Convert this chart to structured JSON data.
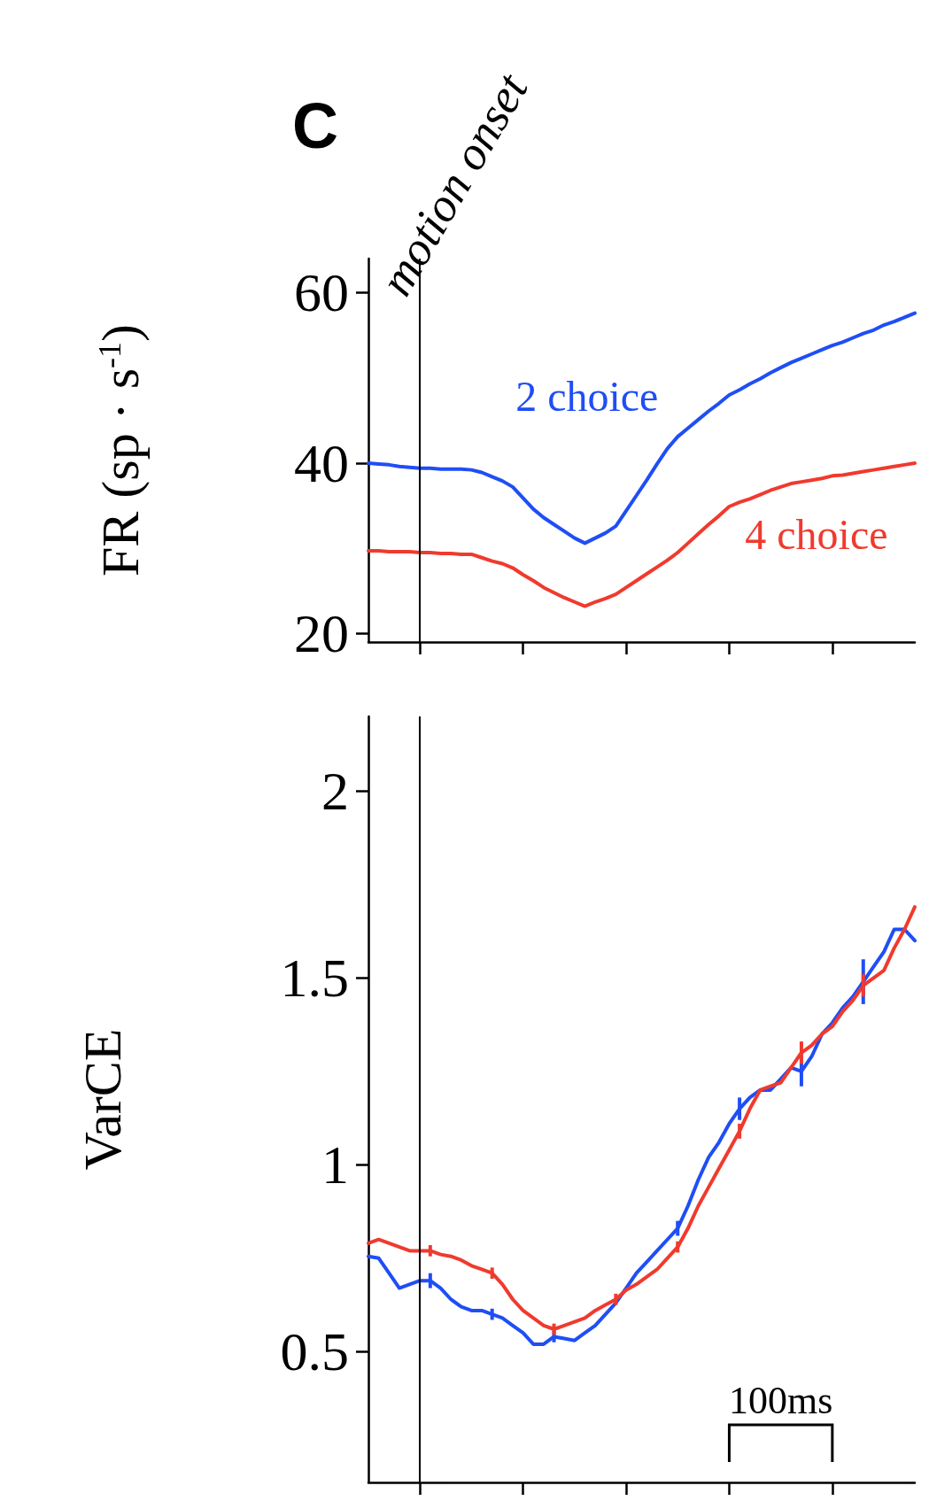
{
  "chart_data": [
    {
      "type": "line",
      "ylabel": "FR (sp · s$^{-1}$)",
      "annotations": [
        "C",
        "motion onset"
      ],
      "tick_labels": "y",
      "categories": [
        null,
        null,
        null,
        null,
        null,
        null,
        null,
        null,
        null,
        null,
        null,
        null,
        null,
        null,
        null,
        null,
        null,
        null,
        null,
        null,
        null,
        null,
        null,
        null,
        null,
        null,
        null,
        null,
        null,
        null,
        null,
        null,
        null,
        null,
        null,
        null,
        null,
        null,
        null,
        null,
        null,
        null,
        null,
        null,
        null,
        null,
        null,
        null,
        null,
        null,
        null,
        null,
        null,
        null
      ],
      "ylim": [
        19,
        64
      ],
      "yticks": [
        20,
        40,
        60
      ],
      "series": [
        {
          "name": "2 choice",
          "color": "#1f4ef5",
          "values": [
            40,
            39.9,
            39.8,
            39.6,
            39.5,
            39.4,
            39.4,
            39.3,
            39.3,
            39.3,
            39.2,
            38.9,
            38.4,
            37.9,
            37.2,
            35.9,
            34.6,
            33.6,
            32.8,
            32.0,
            31.2,
            30.6,
            31.2,
            31.8,
            32.6,
            34.4,
            36.2,
            38.0,
            39.9,
            41.7,
            43.1,
            44.1,
            45.1,
            46.1,
            47.0,
            48,
            48.6,
            49.3,
            49.9,
            50.6,
            51.2,
            51.8,
            52.3,
            52.8,
            53.3,
            53.8,
            54.2,
            54.7,
            55.2,
            55.6,
            56.2,
            56.6,
            57.1,
            57.6
          ]
        },
        {
          "name": "4 choice",
          "color": "#f03a2e",
          "values": [
            29.7,
            29.7,
            29.6,
            29.6,
            29.6,
            29.5,
            29.5,
            29.4,
            29.4,
            29.3,
            29.3,
            28.9,
            28.5,
            28.2,
            27.7,
            26.9,
            26.2,
            25.4,
            24.8,
            24.2,
            23.7,
            23.2,
            23.7,
            24.1,
            24.6,
            25.4,
            26.2,
            27.0,
            27.8,
            28.6,
            29.5,
            30.6,
            31.7,
            32.8,
            33.8,
            34.9,
            35.4,
            35.8,
            36.3,
            36.8,
            37.2,
            37.6,
            37.8,
            38.0,
            38.2,
            38.5,
            38.6,
            38.8,
            39.0,
            39.2,
            39.4,
            39.6,
            39.8,
            40
          ]
        }
      ]
    },
    {
      "type": "line",
      "ylabel": "VarCE",
      "annotations": [
        "100ms"
      ],
      "tick_labels": "y",
      "categories": [
        null,
        null,
        null,
        null,
        null,
        null,
        null,
        null,
        null,
        null,
        null,
        null,
        null,
        null,
        null,
        null,
        null,
        null,
        null,
        null,
        null,
        null,
        null,
        null,
        null,
        null,
        null,
        null,
        null,
        null,
        null,
        null,
        null,
        null,
        null,
        null,
        null,
        null,
        null,
        null,
        null,
        null,
        null,
        null,
        null,
        null,
        null,
        null,
        null,
        null,
        null,
        null,
        null,
        null
      ],
      "ylim": [
        0.15,
        2.2
      ],
      "yticks": [
        0.5,
        1,
        1.5,
        2
      ],
      "series": [
        {
          "color": "#1f4ef5",
          "values": [
            0.755,
            0.75,
            0.71,
            0.67,
            0.68,
            0.69,
            0.69,
            0.67,
            0.64,
            0.62,
            0.61,
            0.61,
            0.6,
            0.59,
            0.57,
            0.55,
            0.52,
            0.52,
            0.54,
            0.535,
            0.53,
            0.55,
            0.57,
            0.6,
            0.63,
            0.67,
            0.71,
            0.74,
            0.77,
            0.8,
            0.83,
            0.89,
            0.96,
            1.02,
            1.06,
            1.11,
            1.15,
            1.18,
            1.2,
            1.2,
            1.23,
            1.26,
            1.25,
            1.29,
            1.35,
            1.38,
            1.42,
            1.45,
            1.49,
            1.53,
            1.57,
            1.63,
            1.63,
            1.6
          ],
          "errors": [
            null,
            null,
            null,
            null,
            null,
            null,
            0.02,
            null,
            null,
            null,
            null,
            null,
            0.015,
            null,
            null,
            null,
            null,
            null,
            0.015,
            null,
            null,
            null,
            null,
            null,
            null,
            null,
            null,
            null,
            null,
            null,
            0.02,
            null,
            null,
            null,
            null,
            null,
            0.03,
            null,
            null,
            null,
            null,
            null,
            0.04,
            null,
            null,
            null,
            null,
            null,
            0.06,
            null,
            null,
            null,
            null,
            null
          ]
        },
        {
          "color": "#f03a2e",
          "values": [
            0.79,
            0.8,
            0.79,
            0.78,
            0.77,
            0.77,
            0.77,
            0.76,
            0.755,
            0.745,
            0.73,
            0.72,
            0.71,
            0.68,
            0.64,
            0.61,
            0.59,
            0.57,
            0.56,
            0.57,
            0.58,
            0.59,
            0.61,
            0.625,
            0.64,
            0.665,
            0.68,
            0.7,
            0.72,
            0.75,
            0.78,
            0.83,
            0.89,
            0.94,
            0.99,
            1.04,
            1.09,
            1.15,
            1.2,
            1.21,
            1.22,
            1.26,
            1.3,
            1.32,
            1.35,
            1.37,
            1.41,
            1.44,
            1.48,
            1.5,
            1.52,
            1.58,
            1.63,
            1.69
          ],
          "errors": [
            null,
            null,
            null,
            null,
            null,
            null,
            0.015,
            null,
            null,
            null,
            null,
            null,
            0.015,
            null,
            null,
            null,
            null,
            null,
            0.015,
            null,
            null,
            null,
            null,
            null,
            0.015,
            null,
            null,
            null,
            null,
            null,
            0.015,
            null,
            null,
            null,
            null,
            null,
            0.02,
            null,
            null,
            null,
            null,
            null,
            0.03,
            null,
            null,
            null,
            null,
            null,
            0.03,
            null,
            null,
            null,
            null,
            null
          ]
        }
      ]
    }
  ]
}
